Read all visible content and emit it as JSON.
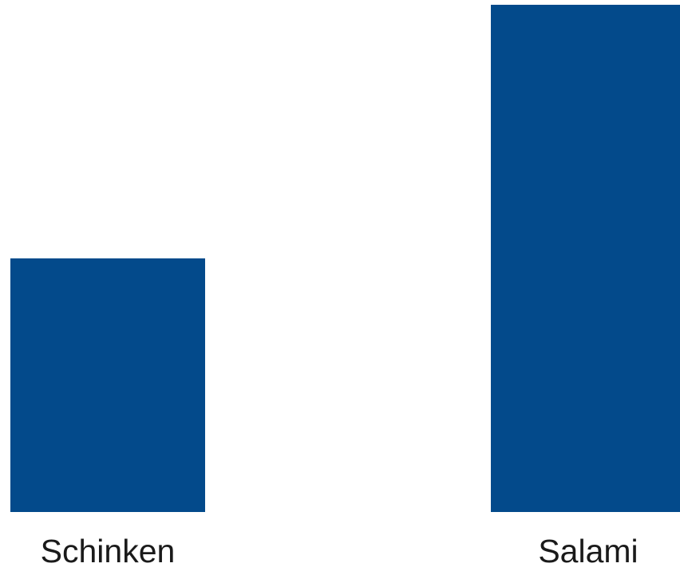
{
  "chart_data": {
    "type": "bar",
    "categories": [
      "Schinken",
      "Salami"
    ],
    "values": [
      50,
      100
    ],
    "title": "",
    "xlabel": "",
    "ylabel": "",
    "ylim": [
      0,
      100
    ],
    "grid": false,
    "legend": "none",
    "bar_color": "#034a8b"
  }
}
